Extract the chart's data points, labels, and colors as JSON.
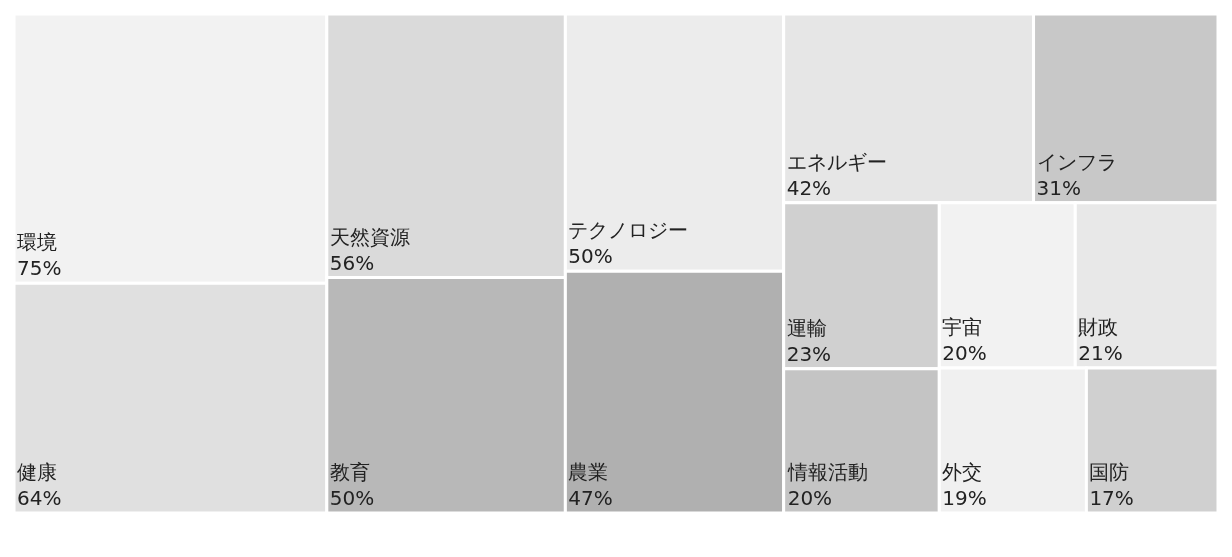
{
  "chart_data": {
    "type": "other",
    "categories": [
      "環境",
      "健康",
      "天然資源",
      "教育",
      "テクノロジー",
      "農業",
      "エネルギー",
      "インフラ",
      "運輸",
      "情報活動",
      "宇宙",
      "財政",
      "外交",
      "国防"
    ],
    "values": [
      75,
      64,
      56,
      50,
      50,
      47,
      42,
      31,
      23,
      20,
      20,
      21,
      19,
      17
    ],
    "value_labels": [
      "75%",
      "64%",
      "56%",
      "50%",
      "50%",
      "47%",
      "42%",
      "31%",
      "23%",
      "20%",
      "20%",
      "21%",
      "19%",
      "17%"
    ],
    "colors": [
      "#f2f2f2",
      "#e0e0e0",
      "#dadada",
      "#b8b8b8",
      "#ececec",
      "#b0b0b0",
      "#e6e6e6",
      "#c8c8c8",
      "#d0d0d0",
      "#c4c4c4",
      "#f2f2f2",
      "#e8e8e8",
      "#f0f0f0",
      "#d0d0d0"
    ]
  }
}
